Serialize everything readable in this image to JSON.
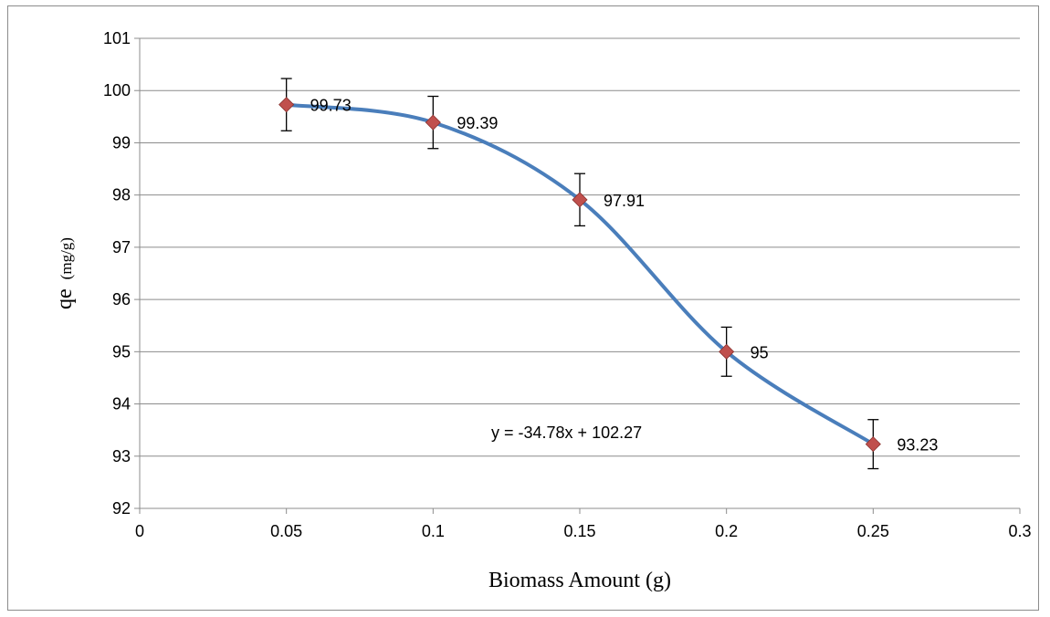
{
  "chart_data": {
    "type": "line",
    "xlabel": "Biomass Amount (g)",
    "ylabel_main": "qe",
    "ylabel_unit": "(mg/g)",
    "xlim": [
      0,
      0.3
    ],
    "ylim": [
      92,
      101
    ],
    "x_ticks": [
      "0",
      "0.05",
      "0.1",
      "0.15",
      "0.2",
      "0.25",
      "0.3"
    ],
    "y_ticks": [
      "92",
      "93",
      "94",
      "95",
      "96",
      "97",
      "98",
      "99",
      "100",
      "101"
    ],
    "grid": "horizontal",
    "series": [
      {
        "x": [
          0.05,
          0.1,
          0.15,
          0.2,
          0.25
        ],
        "values": [
          99.73,
          99.39,
          97.91,
          95,
          93.23
        ],
        "labels": [
          "99.73",
          "99.39",
          "97.91",
          "95",
          "93.23"
        ],
        "error": [
          0.5,
          0.5,
          0.5,
          0.47,
          0.47
        ],
        "line_color": "#4a7ebb",
        "marker_color": "#c0504d",
        "marker": "diamond"
      }
    ],
    "equation": "y = -34.78x + 102.27"
  }
}
